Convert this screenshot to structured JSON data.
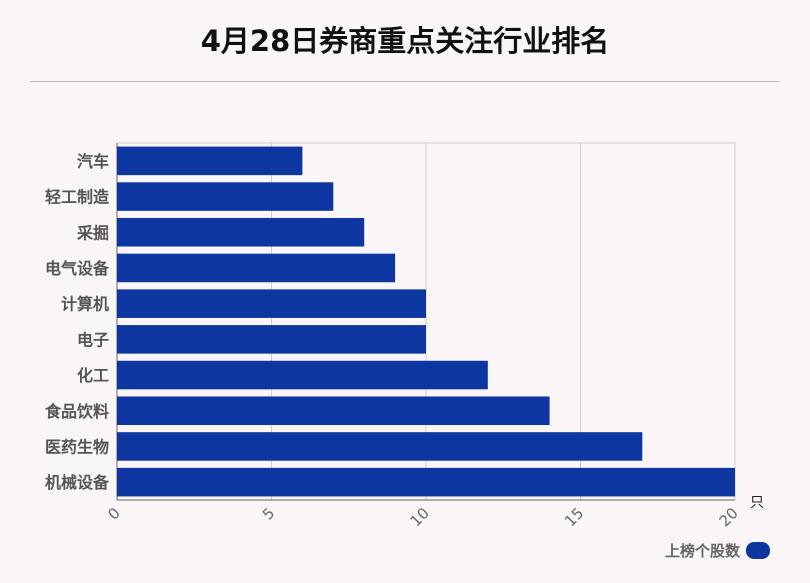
{
  "title": "4月28日券商重点关注行业排名",
  "colors": {
    "bar": "#0e36a0",
    "grid": "#cccccc",
    "axis": "#666666",
    "label": "#555555"
  },
  "chart_data": {
    "type": "bar",
    "orientation": "horizontal",
    "categories": [
      "汽车",
      "轻工制造",
      "采掘",
      "电气设备",
      "计算机",
      "电子",
      "化工",
      "食品饮料",
      "医药生物",
      "机械设备"
    ],
    "series": [
      {
        "name": "上榜个股数",
        "values": [
          6,
          7,
          8,
          9,
          10,
          10,
          12,
          14,
          17,
          20
        ]
      }
    ],
    "xlim": [
      0,
      20
    ],
    "x_ticks": [
      0,
      5,
      10,
      15,
      20
    ],
    "x_unit": "只",
    "grid": true,
    "legend": "bottom-right"
  }
}
